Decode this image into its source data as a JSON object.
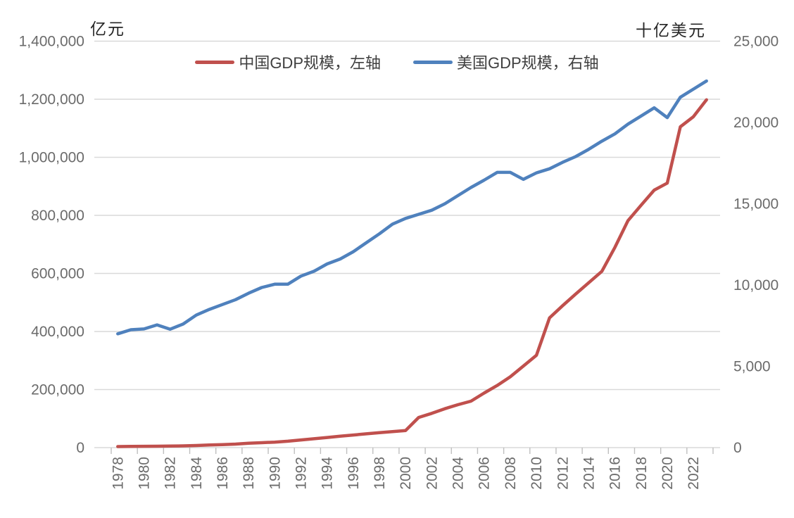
{
  "axis_units": {
    "left": "亿元",
    "right": "十亿美元"
  },
  "colors": {
    "china_line": "#C0504D",
    "us_line": "#4F81BD",
    "gridline": "#D9D9D9",
    "tick_mark": "#BFBFBF",
    "tick_label": "#6B6B6B",
    "unit_label": "#262626",
    "legend_text": "#3F3F3F",
    "background": "#FFFFFF"
  },
  "chart_data": {
    "type": "line",
    "title": "",
    "xlabel": "",
    "left_ylabel": "亿元",
    "right_ylabel": "十亿美元",
    "grid": true,
    "legend_position": "top",
    "left_axis": {
      "min": 0,
      "max": 1400000,
      "step": 200000,
      "tick_labels": [
        "0",
        "200,000",
        "400,000",
        "600,000",
        "800,000",
        "1,000,000",
        "1,200,000",
        "1,400,000"
      ]
    },
    "right_axis": {
      "min": 0,
      "max": 25000,
      "step": 5000,
      "tick_labels": [
        "0",
        "5,000",
        "10,000",
        "15,000",
        "20,000",
        "25,000"
      ]
    },
    "x": [
      1978,
      1979,
      1980,
      1981,
      1982,
      1983,
      1984,
      1985,
      1986,
      1987,
      1988,
      1989,
      1990,
      1991,
      1992,
      1993,
      1994,
      1995,
      1996,
      1997,
      1998,
      1999,
      2000,
      2001,
      2002,
      2003,
      2004,
      2005,
      2006,
      2007,
      2008,
      2009,
      2010,
      2011,
      2012,
      2013,
      2014,
      2015,
      2016,
      2017,
      2018,
      2019,
      2020,
      2021,
      2022,
      2023
    ],
    "x_tick_labels": [
      "1978",
      "1980",
      "1982",
      "1984",
      "1986",
      "1988",
      "1990",
      "1992",
      "1994",
      "1996",
      "1998",
      "2000",
      "2002",
      "2004",
      "2006",
      "2008",
      "2010",
      "2012",
      "2014",
      "2016",
      "2018",
      "2020",
      "2022"
    ],
    "series": [
      {
        "name": "中国GDP规模，左轴",
        "axis": "left",
        "color": "#C0504D",
        "values": [
          3700,
          4100,
          4600,
          4950,
          5400,
          6100,
          7300,
          9100,
          10400,
          12200,
          15200,
          17000,
          19000,
          22000,
          26500,
          30500,
          35000,
          39500,
          43500,
          47500,
          51500,
          55000,
          59000,
          104000,
          118000,
          134000,
          148000,
          160000,
          188000,
          214000,
          244000,
          281000,
          318000,
          447000,
          489000,
          529000,
          568000,
          607000,
          690000,
          782000,
          835000,
          887000,
          911000,
          1105000,
          1140000,
          1198000
        ]
      },
      {
        "name": "美国GDP规模，右轴",
        "axis": "right",
        "color": "#4F81BD",
        "values": [
          7000,
          7250,
          7300,
          7550,
          7280,
          7600,
          8150,
          8500,
          8800,
          9100,
          9500,
          9850,
          10050,
          10050,
          10550,
          10850,
          11300,
          11600,
          12050,
          12600,
          13150,
          13750,
          14100,
          14350,
          14600,
          15000,
          15500,
          16000,
          16450,
          16930,
          16930,
          16500,
          16900,
          17150,
          17550,
          17900,
          18350,
          18850,
          19300,
          19900,
          20400,
          20900,
          20300,
          21550,
          22050,
          22550
        ]
      }
    ]
  }
}
